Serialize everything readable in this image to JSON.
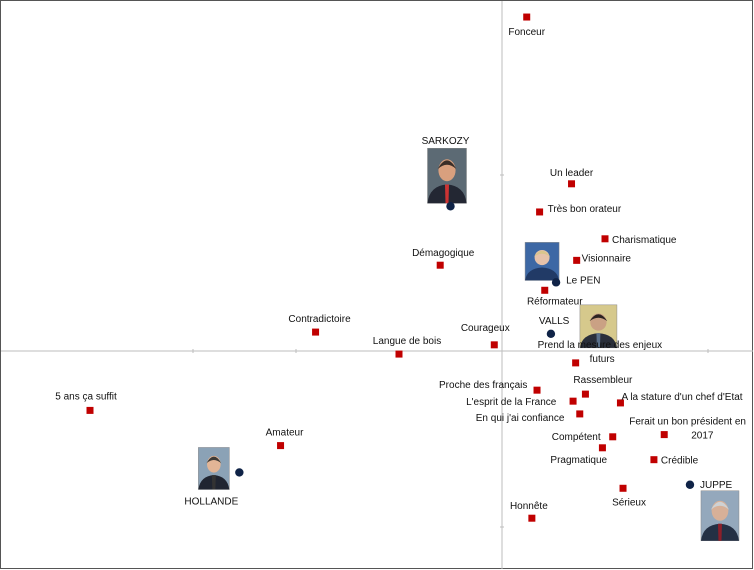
{
  "chart_data": {
    "type": "scatter",
    "title": "",
    "xlabel": "",
    "ylabel": "",
    "grid": false,
    "xlim": [
      -10,
      5
    ],
    "ylim": [
      -5,
      8
    ],
    "origin_axes": true,
    "colors": {
      "attribute": "#c00000",
      "politician": "#0f2347",
      "axis": "#bdbdbd",
      "frame": "#555555"
    },
    "series": [
      {
        "kind": "attributes",
        "points": [
          {
            "x": 0.48,
            "y": 7.59,
            "label": "Fonceur"
          },
          {
            "x": 1.35,
            "y": 3.8,
            "label": "Un leader"
          },
          {
            "x": 0.73,
            "y": 3.16,
            "label": "Très bon orateur"
          },
          {
            "x": 2.0,
            "y": 2.55,
            "label": "Charismatique"
          },
          {
            "x": 1.45,
            "y": 2.06,
            "label": "Visionnaire"
          },
          {
            "x": -1.2,
            "y": 1.95,
            "label": "Démagogique"
          },
          {
            "x": 0.83,
            "y": 1.38,
            "label": "Réformateur"
          },
          {
            "x": -3.62,
            "y": 0.43,
            "label": "Contradictoire"
          },
          {
            "x": -0.15,
            "y": 0.14,
            "label": "Courageux"
          },
          {
            "x": -2.0,
            "y": -0.07,
            "label": "Langue de bois"
          },
          {
            "x": 1.43,
            "y": -0.27,
            "label": "Prend la mesure des enjeux futurs"
          },
          {
            "x": 0.68,
            "y": -0.89,
            "label": "Proche des français"
          },
          {
            "x": 1.62,
            "y": -0.98,
            "label": "Rassembleur"
          },
          {
            "x": 1.38,
            "y": -1.14,
            "label": "L'esprit de la France"
          },
          {
            "x": 2.3,
            "y": -1.18,
            "label": "A la stature d'un chef d'Etat"
          },
          {
            "x": 1.51,
            "y": -1.43,
            "label": "En qui j'ai confiance"
          },
          {
            "x": -8.0,
            "y": -1.35,
            "label": "5 ans ça suffit"
          },
          {
            "x": 2.15,
            "y": -1.95,
            "label": "Compétent"
          },
          {
            "x": 3.15,
            "y": -1.9,
            "label": "Ferait un bon président en 2017"
          },
          {
            "x": -4.3,
            "y": -2.15,
            "label": "Amateur"
          },
          {
            "x": 1.95,
            "y": -2.2,
            "label": "Pragmatique"
          },
          {
            "x": 2.95,
            "y": -2.47,
            "label": "Crédible"
          },
          {
            "x": 2.35,
            "y": -3.12,
            "label": "Sérieux"
          },
          {
            "x": 0.58,
            "y": -3.8,
            "label": "Honnête"
          }
        ]
      },
      {
        "kind": "politicians",
        "points": [
          {
            "x": -1.0,
            "y": 3.29,
            "label": "SARKOZY"
          },
          {
            "x": 1.05,
            "y": 1.56,
            "label": "Le PEN"
          },
          {
            "x": 0.95,
            "y": 0.39,
            "label": "VALLS"
          },
          {
            "x": -5.1,
            "y": -2.76,
            "label": "HOLLANDE"
          },
          {
            "x": 3.65,
            "y": -3.04,
            "label": "JUPPE"
          }
        ]
      }
    ]
  }
}
